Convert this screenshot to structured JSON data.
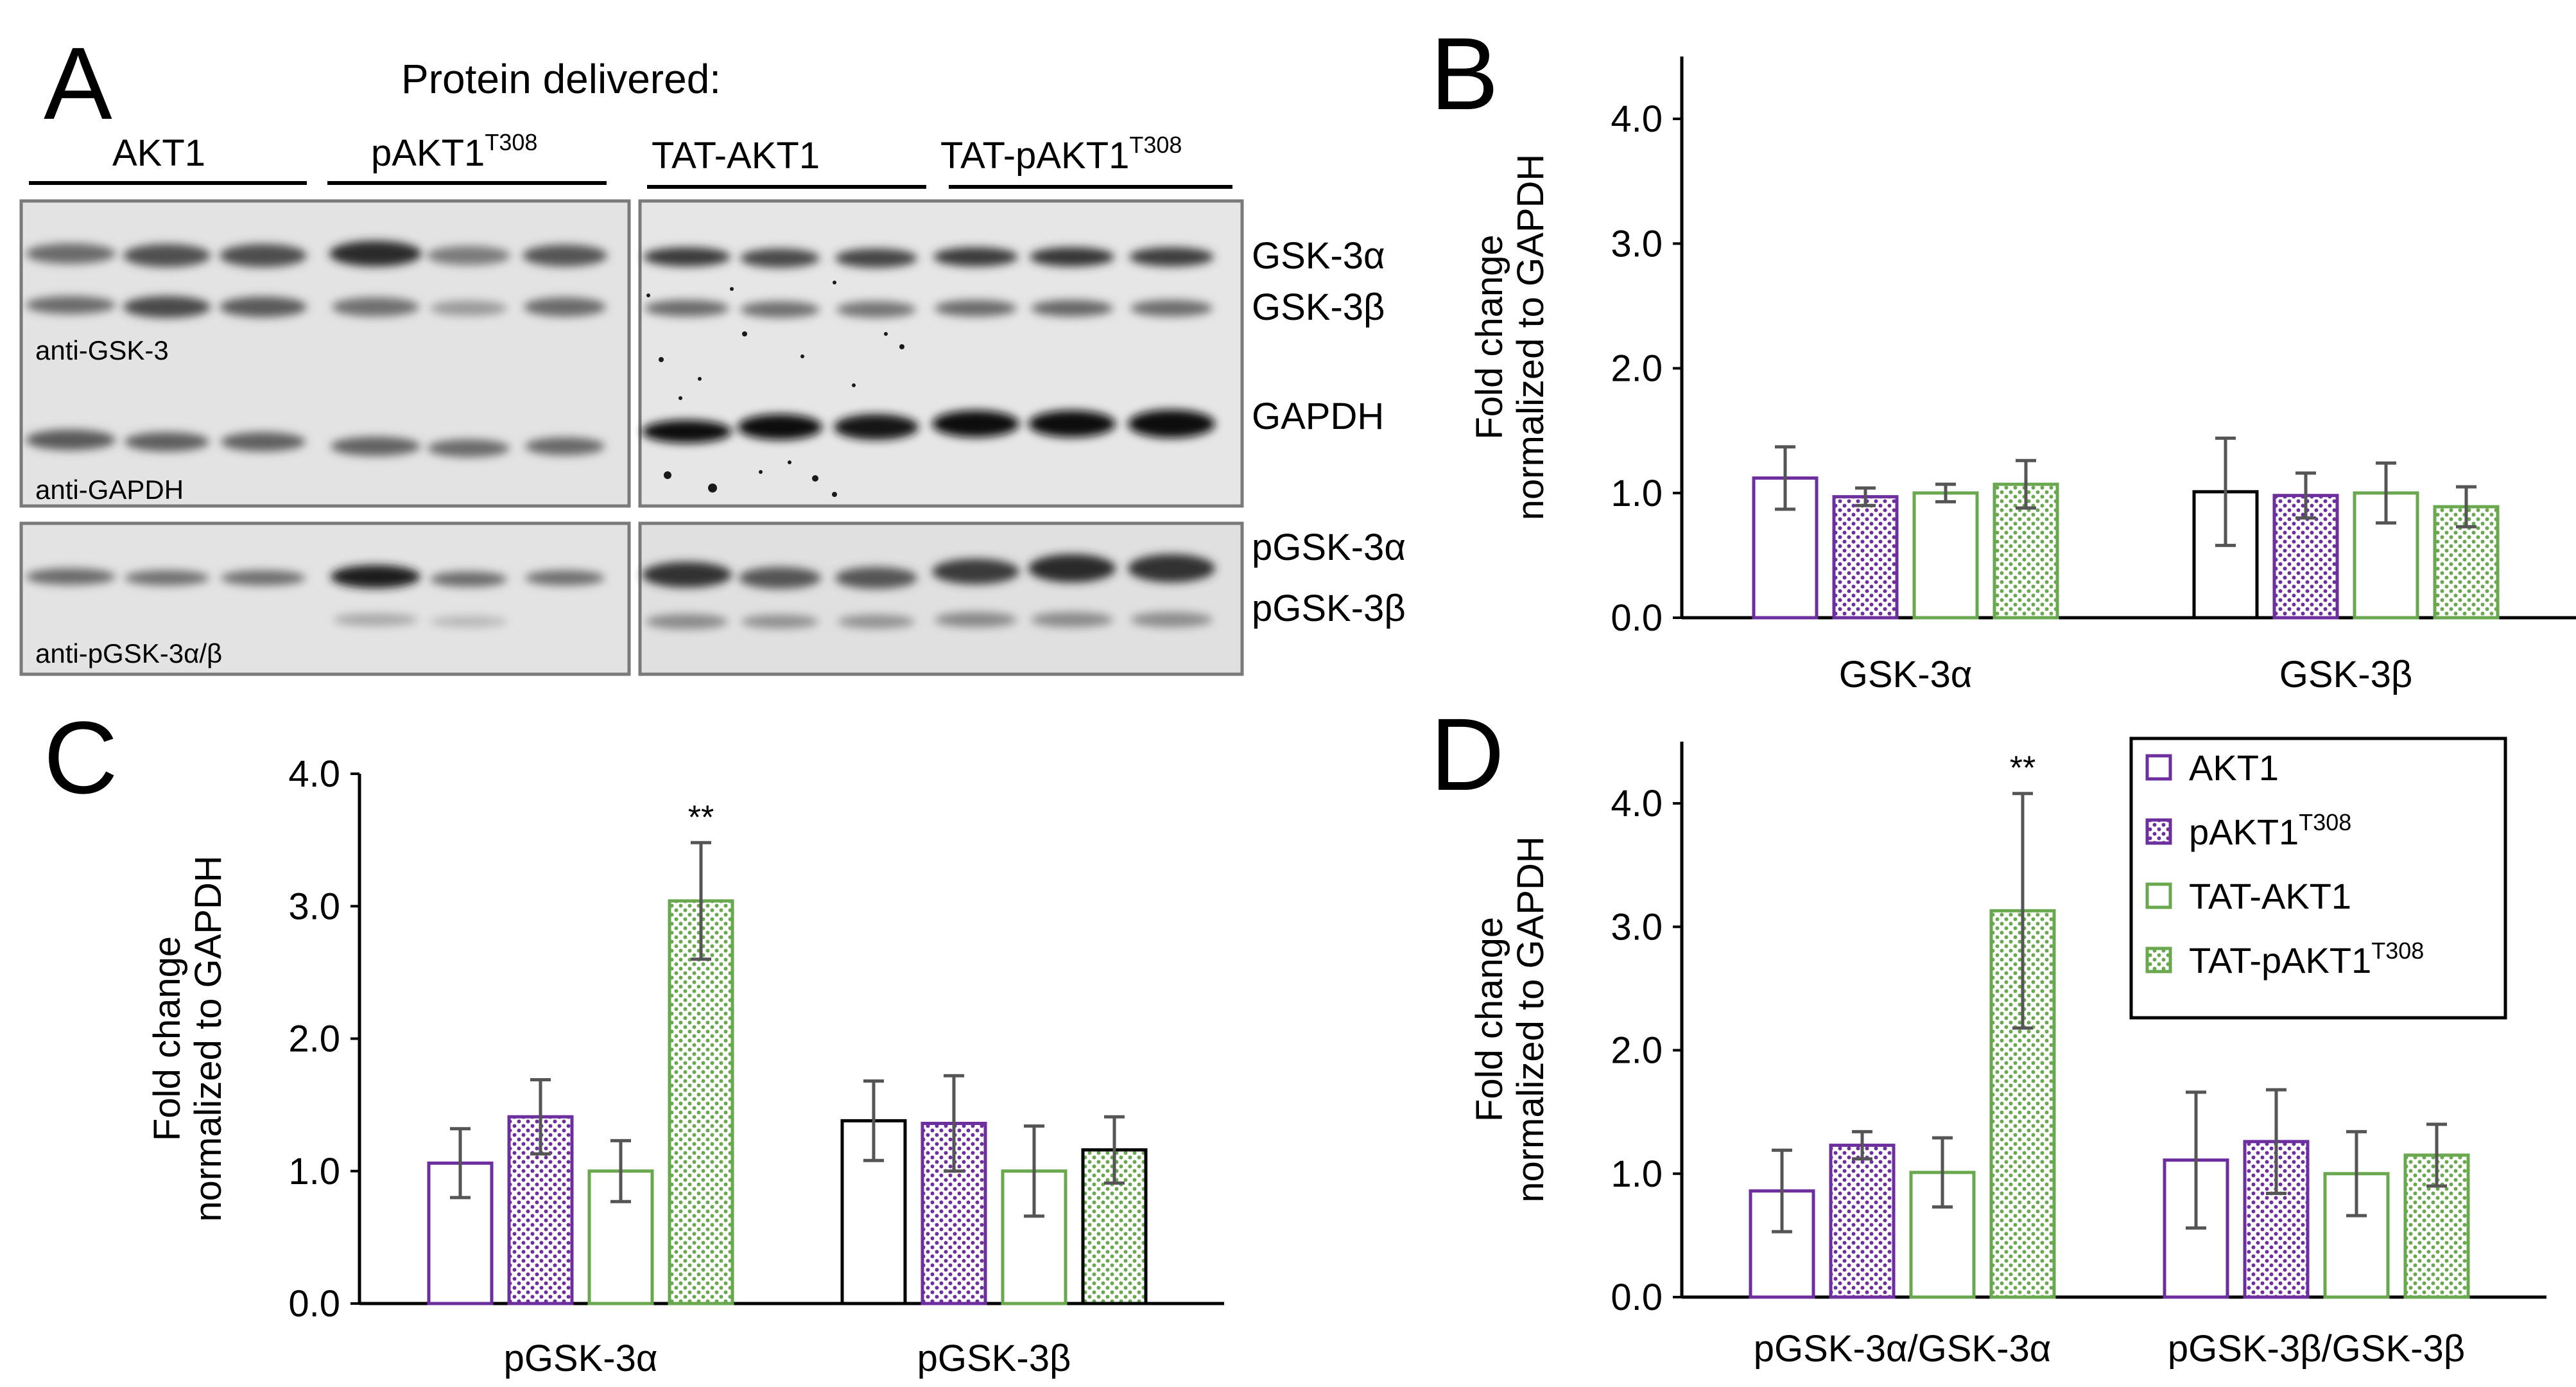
{
  "figure": {
    "panel_letters": [
      "A",
      "B",
      "C",
      "D"
    ]
  },
  "colors": {
    "purple": "#6d2f9e",
    "green": "#6aa84f",
    "black": "#000000",
    "error_bar": "#555555",
    "blot_background": "#e4e4e4",
    "blot_border": "#7a7a7a"
  },
  "panel_a": {
    "header": "Protein delivered:",
    "groups": [
      {
        "base": "AKT1",
        "superscript": ""
      },
      {
        "base": "pAKT1",
        "superscript": "T308"
      },
      {
        "base": "TAT-AKT1",
        "superscript": ""
      },
      {
        "base": "TAT-pAKT1",
        "superscript": "T308"
      }
    ],
    "band_labels": [
      "GSK-3α",
      "GSK-3β",
      "GAPDH",
      "pGSK-3α",
      "pGSK-3β"
    ],
    "antibody_labels": [
      "anti-GSK-3",
      "anti-GAPDH",
      "anti-pGSK-3α/β"
    ]
  },
  "legend": {
    "entries": [
      {
        "base": "AKT1",
        "superscript": "",
        "color": "#6d2f9e",
        "pattern": "open"
      },
      {
        "base": "pAKT1",
        "superscript": "T308",
        "color": "#6d2f9e",
        "pattern": "dotted"
      },
      {
        "base": "TAT-AKT1",
        "superscript": "",
        "color": "#6aa84f",
        "pattern": "open"
      },
      {
        "base": "TAT-pAKT1",
        "superscript": "T308",
        "color": "#6aa84f",
        "pattern": "dotted"
      }
    ]
  },
  "chart_data": [
    {
      "panel": "B",
      "type": "bar",
      "ylabel": [
        "Fold change",
        "normalized to GAPDH"
      ],
      "ylim": [
        0,
        4.5
      ],
      "yticks": [
        0,
        1,
        2,
        3,
        4
      ],
      "ytick_labels": [
        "0.0",
        "1.0",
        "2.0",
        "3.0",
        "4.0"
      ],
      "categories": [
        "GSK-3α",
        "GSK-3β"
      ],
      "series": [
        {
          "name": "AKT1",
          "values": [
            1.12,
            1.01
          ],
          "errors": [
            0.25,
            0.43
          ],
          "edge": [
            "purple",
            "black"
          ],
          "pattern": "open"
        },
        {
          "name": "pAKT1T308",
          "values": [
            0.97,
            0.98
          ],
          "errors": [
            0.07,
            0.18
          ],
          "edge": [
            "purple",
            "purple"
          ],
          "pattern": "dotted"
        },
        {
          "name": "TAT-AKT1",
          "values": [
            1.0,
            1.0
          ],
          "errors": [
            0.07,
            0.24
          ],
          "edge": [
            "green",
            "green"
          ],
          "pattern": "open"
        },
        {
          "name": "TAT-pAKT1T308",
          "values": [
            1.07,
            0.89
          ],
          "errors": [
            0.19,
            0.16
          ],
          "edge": [
            "green",
            "green"
          ],
          "pattern": "dotted"
        }
      ],
      "annotations": []
    },
    {
      "panel": "C",
      "type": "bar",
      "ylabel": [
        "Fold change",
        "normalized to GAPDH"
      ],
      "ylim": [
        0,
        4.0
      ],
      "yticks": [
        0,
        1,
        2,
        3,
        4
      ],
      "ytick_labels": [
        "0.0",
        "1.0",
        "2.0",
        "3.0",
        "4.0"
      ],
      "categories": [
        "pGSK-3α",
        "pGSK-3β"
      ],
      "series": [
        {
          "name": "AKT1",
          "values": [
            1.06,
            1.38
          ],
          "errors": [
            0.26,
            0.3
          ],
          "edge": [
            "purple",
            "black"
          ],
          "pattern": "open"
        },
        {
          "name": "pAKT1T308",
          "values": [
            1.41,
            1.36
          ],
          "errors": [
            0.28,
            0.36
          ],
          "edge": [
            "purple",
            "purple"
          ],
          "pattern": "dotted"
        },
        {
          "name": "TAT-AKT1",
          "values": [
            1.0,
            1.0
          ],
          "errors": [
            0.23,
            0.34
          ],
          "edge": [
            "green",
            "green"
          ],
          "pattern": "open"
        },
        {
          "name": "TAT-pAKT1T308",
          "values": [
            3.04,
            1.16
          ],
          "errors": [
            0.44,
            0.25
          ],
          "edge": [
            "green",
            "black"
          ],
          "pattern": "dotted"
        }
      ],
      "annotations": [
        {
          "text": "**",
          "series": 3,
          "category": 0
        }
      ]
    },
    {
      "panel": "D",
      "type": "bar",
      "ylabel": [
        "Fold change",
        "normalized to GAPDH"
      ],
      "ylim": [
        0,
        4.5
      ],
      "yticks": [
        0,
        1,
        2,
        3,
        4
      ],
      "ytick_labels": [
        "0.0",
        "1.0",
        "2.0",
        "3.0",
        "4.0"
      ],
      "categories": [
        "pGSK-3α/GSK-3α",
        "pGSK-3β/GSK-3β"
      ],
      "series": [
        {
          "name": "AKT1",
          "values": [
            0.86,
            1.11
          ],
          "errors": [
            0.33,
            0.55
          ],
          "edge": [
            "purple",
            "purple"
          ],
          "pattern": "open"
        },
        {
          "name": "pAKT1T308",
          "values": [
            1.23,
            1.26
          ],
          "errors": [
            0.11,
            0.42
          ],
          "edge": [
            "purple",
            "purple"
          ],
          "pattern": "dotted"
        },
        {
          "name": "TAT-AKT1",
          "values": [
            1.01,
            1.0
          ],
          "errors": [
            0.28,
            0.34
          ],
          "edge": [
            "green",
            "green"
          ],
          "pattern": "open"
        },
        {
          "name": "TAT-pAKT1T308",
          "values": [
            3.13,
            1.15
          ],
          "errors": [
            0.95,
            0.25
          ],
          "edge": [
            "green",
            "green"
          ],
          "pattern": "dotted"
        }
      ],
      "annotations": [
        {
          "text": "**",
          "series": 3,
          "category": 0
        }
      ]
    }
  ]
}
